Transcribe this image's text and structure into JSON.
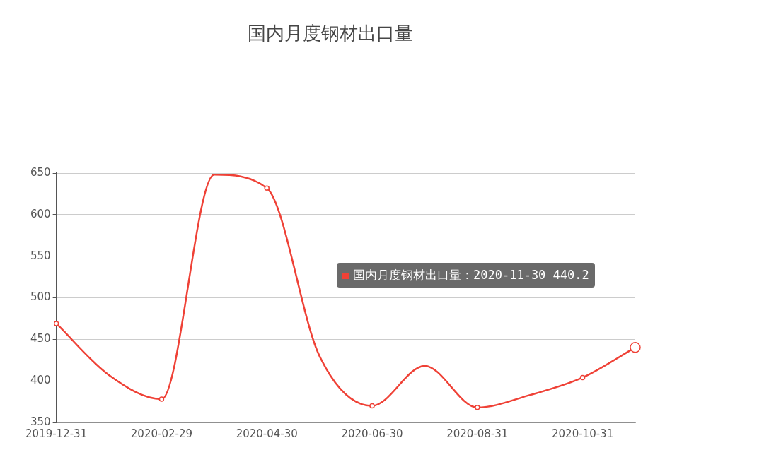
{
  "chart_data": {
    "type": "line",
    "title": "国内月度钢材出口量",
    "categories": [
      "2019-12-31",
      null,
      "2020-02-29",
      null,
      "2020-04-30",
      null,
      "2020-06-30",
      null,
      "2020-08-31",
      null,
      "2020-10-31",
      null
    ],
    "series": [
      {
        "color": "#ef4136",
        "values": [
          469,
          407,
          378,
          648,
          632,
          430,
          370,
          418,
          368,
          383,
          404,
          440.2
        ]
      }
    ],
    "ylim": [
      350,
      650
    ],
    "yticks": [
      350,
      400,
      450,
      500,
      550,
      600,
      650
    ],
    "grid": "y",
    "legend": false,
    "marker": "circle",
    "line_style": "solid",
    "annotations": [
      "国内月度钢材出口量：2020-11-30 440.2"
    ]
  }
}
